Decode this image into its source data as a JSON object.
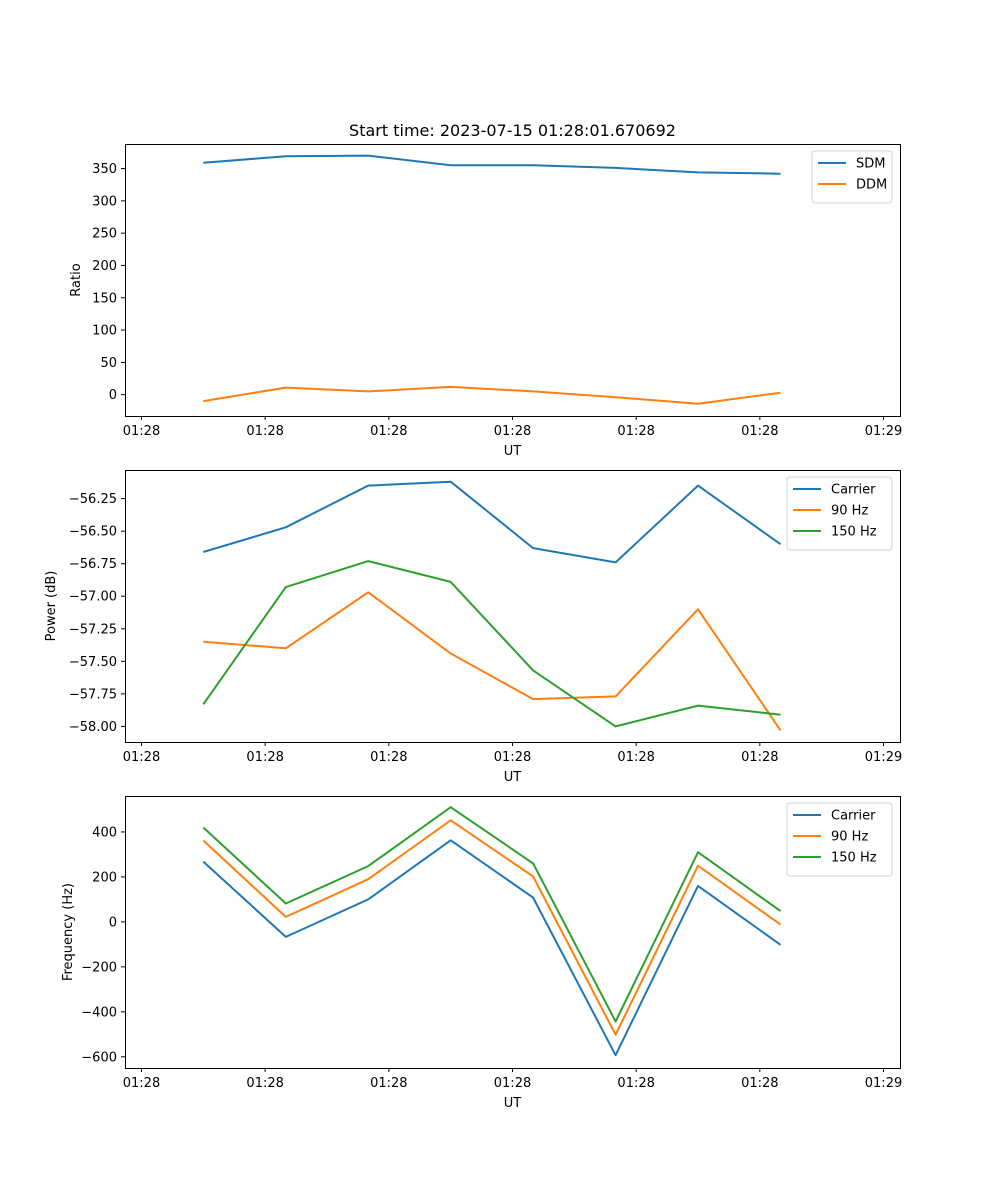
{
  "figure": {
    "title": "Start time: 2023-07-15 01:28:01.670692"
  },
  "colors": {
    "blue": "#1f77b4",
    "orange": "#ff7f0e",
    "green": "#2ca02c"
  },
  "chart_data": [
    {
      "type": "line",
      "id": "ratio",
      "title": "Start time: 2023-07-15 01:28:01.670692",
      "xlabel": "UT",
      "ylabel": "Ratio",
      "x": [
        0.75,
        1.75,
        2.75,
        3.75,
        4.75,
        5.75,
        6.75,
        7.75
      ],
      "xlim": [
        -0.2,
        9.2
      ],
      "ylim": [
        -33,
        388
      ],
      "xticks": [
        0,
        1.5,
        3,
        4.5,
        6,
        7.5,
        9
      ],
      "xtick_labels": [
        "01:28",
        "01:28",
        "01:28",
        "01:28",
        "01:28",
        "01:28",
        "01:29"
      ],
      "yticks": [
        0,
        50,
        100,
        150,
        200,
        250,
        300,
        350
      ],
      "ytick_labels": [
        "0",
        "50",
        "100",
        "150",
        "200",
        "250",
        "300",
        "350"
      ],
      "legend_position": "top-right",
      "series": [
        {
          "name": "SDM",
          "color": "#1f77b4",
          "values": [
            359,
            369,
            370,
            355,
            355,
            351,
            344,
            342
          ]
        },
        {
          "name": "DDM",
          "color": "#ff7f0e",
          "values": [
            -10,
            11,
            5,
            12,
            5,
            -4,
            -14,
            3
          ]
        }
      ]
    },
    {
      "type": "line",
      "id": "power",
      "xlabel": "UT",
      "ylabel": "Power (dB)",
      "x": [
        0.75,
        1.75,
        2.75,
        3.75,
        4.75,
        5.75,
        6.75,
        7.75
      ],
      "xlim": [
        -0.2,
        9.2
      ],
      "ylim": [
        -58.12,
        -56.03
      ],
      "xticks": [
        0,
        1.5,
        3,
        4.5,
        6,
        7.5,
        9
      ],
      "xtick_labels": [
        "01:28",
        "01:28",
        "01:28",
        "01:28",
        "01:28",
        "01:28",
        "01:29"
      ],
      "yticks": [
        -58.0,
        -57.75,
        -57.5,
        -57.25,
        -57.0,
        -56.75,
        -56.5,
        -56.25
      ],
      "ytick_labels": [
        "−58.00",
        "−57.75",
        "−57.50",
        "−57.25",
        "−57.00",
        "−56.75",
        "−56.50",
        "−56.25"
      ],
      "legend_position": "top-right",
      "series": [
        {
          "name": "Carrier",
          "color": "#1f77b4",
          "values": [
            -56.66,
            -56.47,
            -56.15,
            -56.12,
            -56.63,
            -56.74,
            -56.15,
            -56.6
          ]
        },
        {
          "name": "90 Hz",
          "color": "#ff7f0e",
          "values": [
            -57.35,
            -57.4,
            -56.97,
            -57.44,
            -57.79,
            -57.77,
            -57.1,
            -58.03
          ]
        },
        {
          "name": "150 Hz",
          "color": "#2ca02c",
          "values": [
            -57.83,
            -56.93,
            -56.73,
            -56.89,
            -57.57,
            -58.0,
            -57.84,
            -57.91
          ]
        }
      ]
    },
    {
      "type": "line",
      "id": "frequency",
      "xlabel": "UT",
      "ylabel": "Frequency (Hz)",
      "x": [
        0.75,
        1.75,
        2.75,
        3.75,
        4.75,
        5.75,
        6.75,
        7.75
      ],
      "xlim": [
        -0.2,
        9.2
      ],
      "ylim": [
        -650,
        560
      ],
      "xticks": [
        0,
        1.5,
        3,
        4.5,
        6,
        7.5,
        9
      ],
      "xtick_labels": [
        "01:28",
        "01:28",
        "01:28",
        "01:28",
        "01:28",
        "01:28",
        "01:29"
      ],
      "yticks": [
        -600,
        -400,
        -200,
        0,
        200,
        400
      ],
      "ytick_labels": [
        "−600",
        "−400",
        "−200",
        "0",
        "200",
        "400"
      ],
      "legend_position": "top-right",
      "series": [
        {
          "name": "Carrier",
          "color": "#1f77b4",
          "values": [
            268,
            -67,
            100,
            363,
            108,
            -593,
            160,
            -102
          ]
        },
        {
          "name": "90 Hz",
          "color": "#ff7f0e",
          "values": [
            362,
            22,
            190,
            452,
            202,
            -502,
            250,
            -12
          ]
        },
        {
          "name": "150 Hz",
          "color": "#2ca02c",
          "values": [
            420,
            82,
            248,
            510,
            260,
            -443,
            310,
            48
          ]
        }
      ]
    }
  ]
}
